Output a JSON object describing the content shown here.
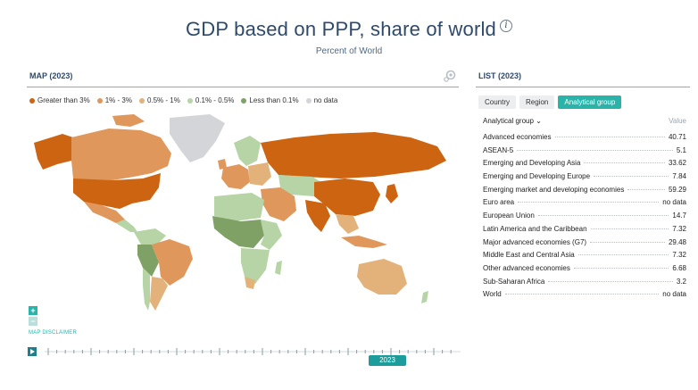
{
  "header": {
    "title": "GDP based on PPP, share of world",
    "subtitle": "Percent of World",
    "info_glyph": "i"
  },
  "map_panel": {
    "label": "MAP (2023)",
    "legend": [
      {
        "label": "Greater than 3%",
        "color": "#cc6411"
      },
      {
        "label": "1% - 3%",
        "color": "#e0975c"
      },
      {
        "label": "0.5% - 1%",
        "color": "#e3b27a"
      },
      {
        "label": "0.1% - 0.5%",
        "color": "#b7d4a6"
      },
      {
        "label": "Less than 0.1%",
        "color": "#7fa165"
      },
      {
        "label": "no data",
        "color": "#d3d5d8"
      }
    ],
    "zoom_in": "+",
    "zoom_out": "−",
    "disclaimer": "MAP DISCLAIMER",
    "timeline_year": "2023"
  },
  "list_panel": {
    "label": "LIST (2023)",
    "tabs": [
      "Country",
      "Region",
      "Analytical group"
    ],
    "active_tab": "Analytical group",
    "group_header": "Analytical group ⌄",
    "value_header": "Value",
    "rows": [
      {
        "name": "Advanced economies",
        "value": "40.71"
      },
      {
        "name": "ASEAN-5",
        "value": "5.1"
      },
      {
        "name": "Emerging and Developing Asia",
        "value": "33.62"
      },
      {
        "name": "Emerging and Developing Europe",
        "value": "7.84"
      },
      {
        "name": "Emerging market and developing economies",
        "value": "59.29"
      },
      {
        "name": "Euro area",
        "value": "no data"
      },
      {
        "name": "European Union",
        "value": "14.7"
      },
      {
        "name": "Latin America and the Caribbean",
        "value": "7.32"
      },
      {
        "name": "Major advanced economies (G7)",
        "value": "29.48"
      },
      {
        "name": "Middle East and Central Asia",
        "value": "7.32"
      },
      {
        "name": "Other advanced economies",
        "value": "6.68"
      },
      {
        "name": "Sub-Saharan Africa",
        "value": "3.2"
      },
      {
        "name": "World",
        "value": "no data"
      }
    ]
  },
  "map_regions": [
    {
      "name": "greenland",
      "category": "no data"
    },
    {
      "name": "canada",
      "category": "1% - 3%"
    },
    {
      "name": "alaska",
      "category": "Greater than 3%"
    },
    {
      "name": "usa",
      "category": "Greater than 3%"
    },
    {
      "name": "mexico",
      "category": "1% - 3%"
    },
    {
      "name": "central-america",
      "category": "0.1% - 0.5%"
    },
    {
      "name": "colombia-venezuela",
      "category": "0.1% - 0.5%"
    },
    {
      "name": "peru-bolivia",
      "category": "Less than 0.1%"
    },
    {
      "name": "brazil",
      "category": "1% - 3%"
    },
    {
      "name": "argentina",
      "category": "0.5% - 1%"
    },
    {
      "name": "chile",
      "category": "0.1% - 0.5%"
    },
    {
      "name": "russia",
      "category": "Greater than 3%"
    },
    {
      "name": "scandinavia",
      "category": "0.1% - 0.5%"
    },
    {
      "name": "western-europe",
      "category": "1% - 3%"
    },
    {
      "name": "eastern-europe",
      "category": "0.5% - 1%"
    },
    {
      "name": "north-africa",
      "category": "0.1% - 0.5%"
    },
    {
      "name": "west-central-africa",
      "category": "Less than 0.1%"
    },
    {
      "name": "east-africa",
      "category": "0.1% - 0.5%"
    },
    {
      "name": "southern-africa",
      "category": "0.1% - 0.5%"
    },
    {
      "name": "middle-east",
      "category": "1% - 3%"
    },
    {
      "name": "central-asia",
      "category": "0.1% - 0.5%"
    },
    {
      "name": "china",
      "category": "Greater than 3%"
    },
    {
      "name": "india",
      "category": "Greater than 3%"
    },
    {
      "name": "southeast-asia",
      "category": "0.5% - 1%"
    },
    {
      "name": "indonesia",
      "category": "1% - 3%"
    },
    {
      "name": "japan",
      "category": "Greater than 3%"
    },
    {
      "name": "australia",
      "category": "0.5% - 1%"
    },
    {
      "name": "new-zealand",
      "category": "0.1% - 0.5%"
    }
  ]
}
